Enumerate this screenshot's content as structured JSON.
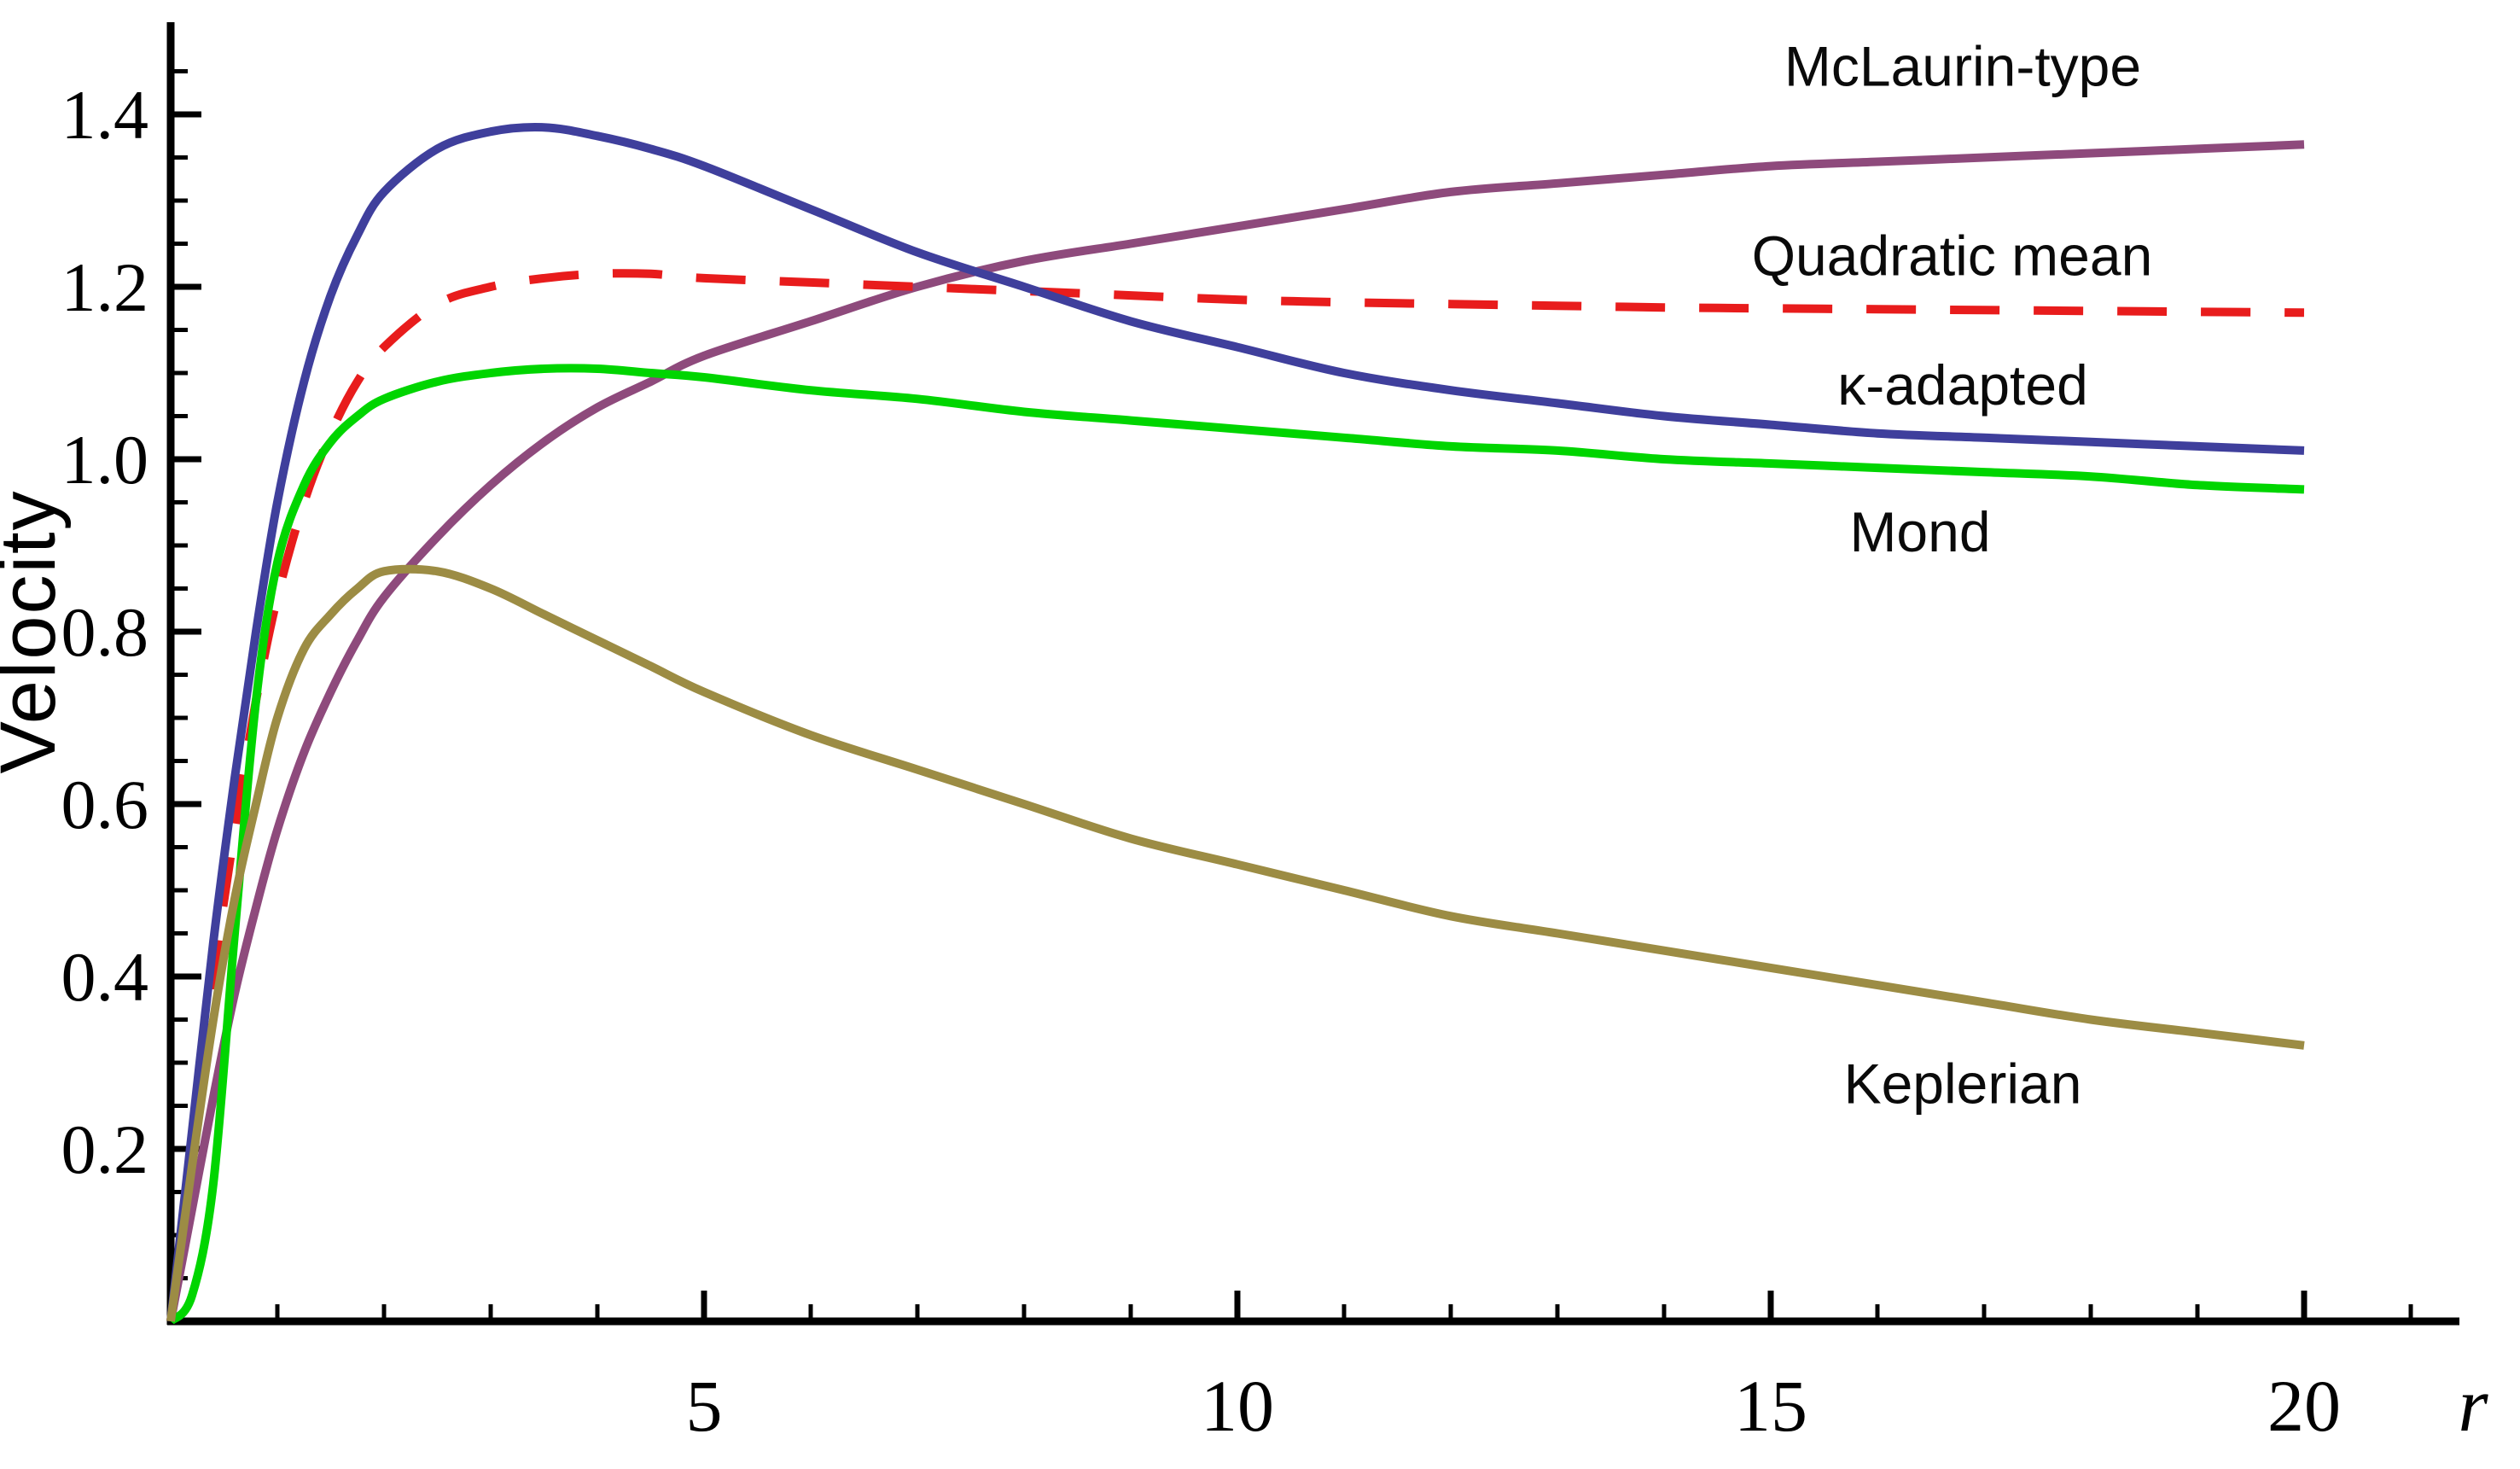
{
  "figure": {
    "background": "#ffffff",
    "text_color": "#000000",
    "axis_color": "#000000"
  },
  "chart_data": {
    "type": "line",
    "title": "",
    "xlabel": "r",
    "ylabel": "Velocity",
    "xlim": [
      0,
      21.4
    ],
    "ylim": [
      0,
      1.5
    ],
    "grid": false,
    "legend_position": "inline labels beside curves",
    "x_minor_tick_step": 1,
    "y_minor_tick_step": 0.05,
    "x_ticks": [
      {
        "value": 5,
        "label": "5"
      },
      {
        "value": 10,
        "label": "10"
      },
      {
        "value": 15,
        "label": "15"
      },
      {
        "value": 20,
        "label": "20"
      }
    ],
    "y_ticks": [
      {
        "value": 0.2,
        "label": "0.2"
      },
      {
        "value": 0.4,
        "label": "0.4"
      },
      {
        "value": 0.6,
        "label": "0.6"
      },
      {
        "value": 0.8,
        "label": "0.8"
      },
      {
        "value": 1.0,
        "label": "1.0"
      },
      {
        "value": 1.2,
        "label": "1.2"
      },
      {
        "value": 1.4,
        "label": "1.4"
      }
    ],
    "x": [
      0,
      0.2,
      0.4,
      0.6,
      0.8,
      1,
      1.25,
      1.5,
      1.75,
      2,
      2.5,
      3,
      3.5,
      4,
      4.5,
      5,
      6,
      7,
      8,
      9,
      10,
      11,
      12,
      13,
      14,
      15,
      16,
      17,
      18,
      19,
      20
    ],
    "series": [
      {
        "name": "McLaurin-type",
        "slug": "mclaurin-type",
        "color": "#8e4a7c",
        "style": "solid",
        "values": [
          0,
          0.13,
          0.26,
          0.38,
          0.48,
          0.57,
          0.66,
          0.73,
          0.79,
          0.84,
          0.91,
          0.97,
          1.02,
          1.06,
          1.09,
          1.12,
          1.16,
          1.2,
          1.23,
          1.25,
          1.27,
          1.29,
          1.31,
          1.32,
          1.33,
          1.34,
          1.345,
          1.35,
          1.355,
          1.36,
          1.365
        ]
      },
      {
        "name": "Quadratic mean",
        "slug": "quadratic-mean",
        "color": "#e81c1c",
        "style": "dashed",
        "values": [
          0,
          0.2,
          0.4,
          0.57,
          0.72,
          0.84,
          0.95,
          1.03,
          1.09,
          1.13,
          1.18,
          1.2,
          1.21,
          1.215,
          1.215,
          1.21,
          1.205,
          1.2,
          1.195,
          1.19,
          1.185,
          1.182,
          1.18,
          1.178,
          1.176,
          1.175,
          1.174,
          1.173,
          1.172,
          1.171,
          1.17
        ]
      },
      {
        "name": "κ-adapted",
        "slug": "kappa-adapted",
        "color": "#3f3f9c",
        "style": "solid",
        "values": [
          0,
          0.22,
          0.44,
          0.63,
          0.8,
          0.95,
          1.09,
          1.19,
          1.26,
          1.31,
          1.36,
          1.38,
          1.385,
          1.375,
          1.36,
          1.34,
          1.29,
          1.24,
          1.2,
          1.16,
          1.13,
          1.1,
          1.08,
          1.065,
          1.05,
          1.04,
          1.03,
          1.025,
          1.02,
          1.015,
          1.01
        ]
      },
      {
        "name": "Mond",
        "slug": "mond",
        "color": "#00d500",
        "style": "solid",
        "values": [
          0,
          0.03,
          0.16,
          0.45,
          0.72,
          0.88,
          0.97,
          1.02,
          1.05,
          1.07,
          1.09,
          1.1,
          1.105,
          1.105,
          1.1,
          1.095,
          1.08,
          1.07,
          1.055,
          1.045,
          1.035,
          1.025,
          1.015,
          1.01,
          1.0,
          0.995,
          0.99,
          0.985,
          0.98,
          0.97,
          0.965
        ]
      },
      {
        "name": "Keplerian",
        "slug": "keplerian",
        "color": "#9c8c44",
        "style": "solid",
        "values": [
          0,
          0.18,
          0.35,
          0.49,
          0.6,
          0.7,
          0.78,
          0.82,
          0.85,
          0.87,
          0.87,
          0.85,
          0.82,
          0.79,
          0.76,
          0.73,
          0.68,
          0.64,
          0.6,
          0.56,
          0.53,
          0.5,
          0.47,
          0.45,
          0.43,
          0.41,
          0.39,
          0.37,
          0.35,
          0.335,
          0.32
        ]
      }
    ],
    "annotations": [
      {
        "text": "McLaurin-type",
        "slug": "mclaurin-type",
        "x": 16.8,
        "y": 1.455
      },
      {
        "text": "Quadratic mean",
        "slug": "quadratic-mean",
        "x": 16.7,
        "y": 1.235
      },
      {
        "text": "κ-adapted",
        "slug": "kappa-adapted",
        "x": 16.8,
        "y": 1.085
      },
      {
        "text": "Mond",
        "slug": "mond",
        "x": 16.4,
        "y": 0.915
      },
      {
        "text": "Keplerian",
        "slug": "keplerian",
        "x": 16.8,
        "y": 0.275
      }
    ]
  }
}
